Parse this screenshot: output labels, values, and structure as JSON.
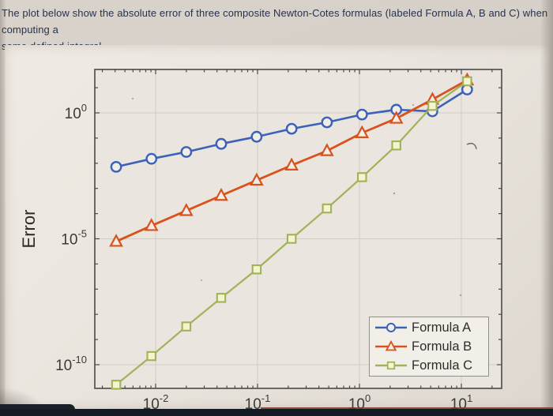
{
  "header": {
    "lines": [
      "The plot below show the absolute error of three composite Newton-Cotes formulas (labeled Formula A, B and C) when computing a",
      "same defined integral."
    ]
  },
  "chart_data": {
    "type": "line",
    "title": "",
    "xlabel": "",
    "ylabel": "Error",
    "x_scale": "log",
    "y_scale": "log",
    "grid": true,
    "legend_position": "bottom-right",
    "x_ticks": [
      "10^-2",
      "10^-1",
      "10^0",
      "10^1"
    ],
    "y_ticks": [
      "10^0",
      "10^-5",
      "10^-10"
    ],
    "xlim": [
      0.0025,
      25
    ],
    "ylim": [
      1.2e-11,
      55
    ],
    "x": [
      0.0041,
      0.0091,
      0.02,
      0.044,
      0.098,
      0.216,
      0.48,
      1.06,
      2.3,
      5.2,
      11.4
    ],
    "series": [
      {
        "name": "Formula A",
        "marker": "circle",
        "color": "#3b62b8",
        "marker_fill": "#f2eee7",
        "values": [
          0.0072,
          0.015,
          0.028,
          0.059,
          0.113,
          0.234,
          0.42,
          0.86,
          1.34,
          1.15,
          8.5
        ]
      },
      {
        "name": "Formula B",
        "marker": "triangle",
        "color": "#d8521e",
        "marker_fill": "#f2eee7",
        "values": [
          7.8e-06,
          3.3e-05,
          0.00013,
          0.00052,
          0.0021,
          0.0083,
          0.031,
          0.16,
          0.6,
          3.4,
          20
        ]
      },
      {
        "name": "Formula C",
        "marker": "square",
        "color": "#a0b358",
        "marker_fill": "#f6f3cf",
        "values": [
          1.6e-11,
          2.2e-10,
          3.3e-09,
          4.5e-08,
          6.1e-07,
          1e-05,
          0.00016,
          0.0028,
          0.051,
          1.9,
          18
        ]
      }
    ]
  },
  "colors": {
    "page_background": "#d5cfc7",
    "panel_background": "#eae5de",
    "axis": "#4a4a46",
    "grid": "#d2ccc4",
    "header_text": "#26324e",
    "tick_text": "#3a3a38",
    "legend_background": "#f2efe9",
    "legend_border": "#8f8f8b",
    "bottom_bar": "#161a22"
  }
}
